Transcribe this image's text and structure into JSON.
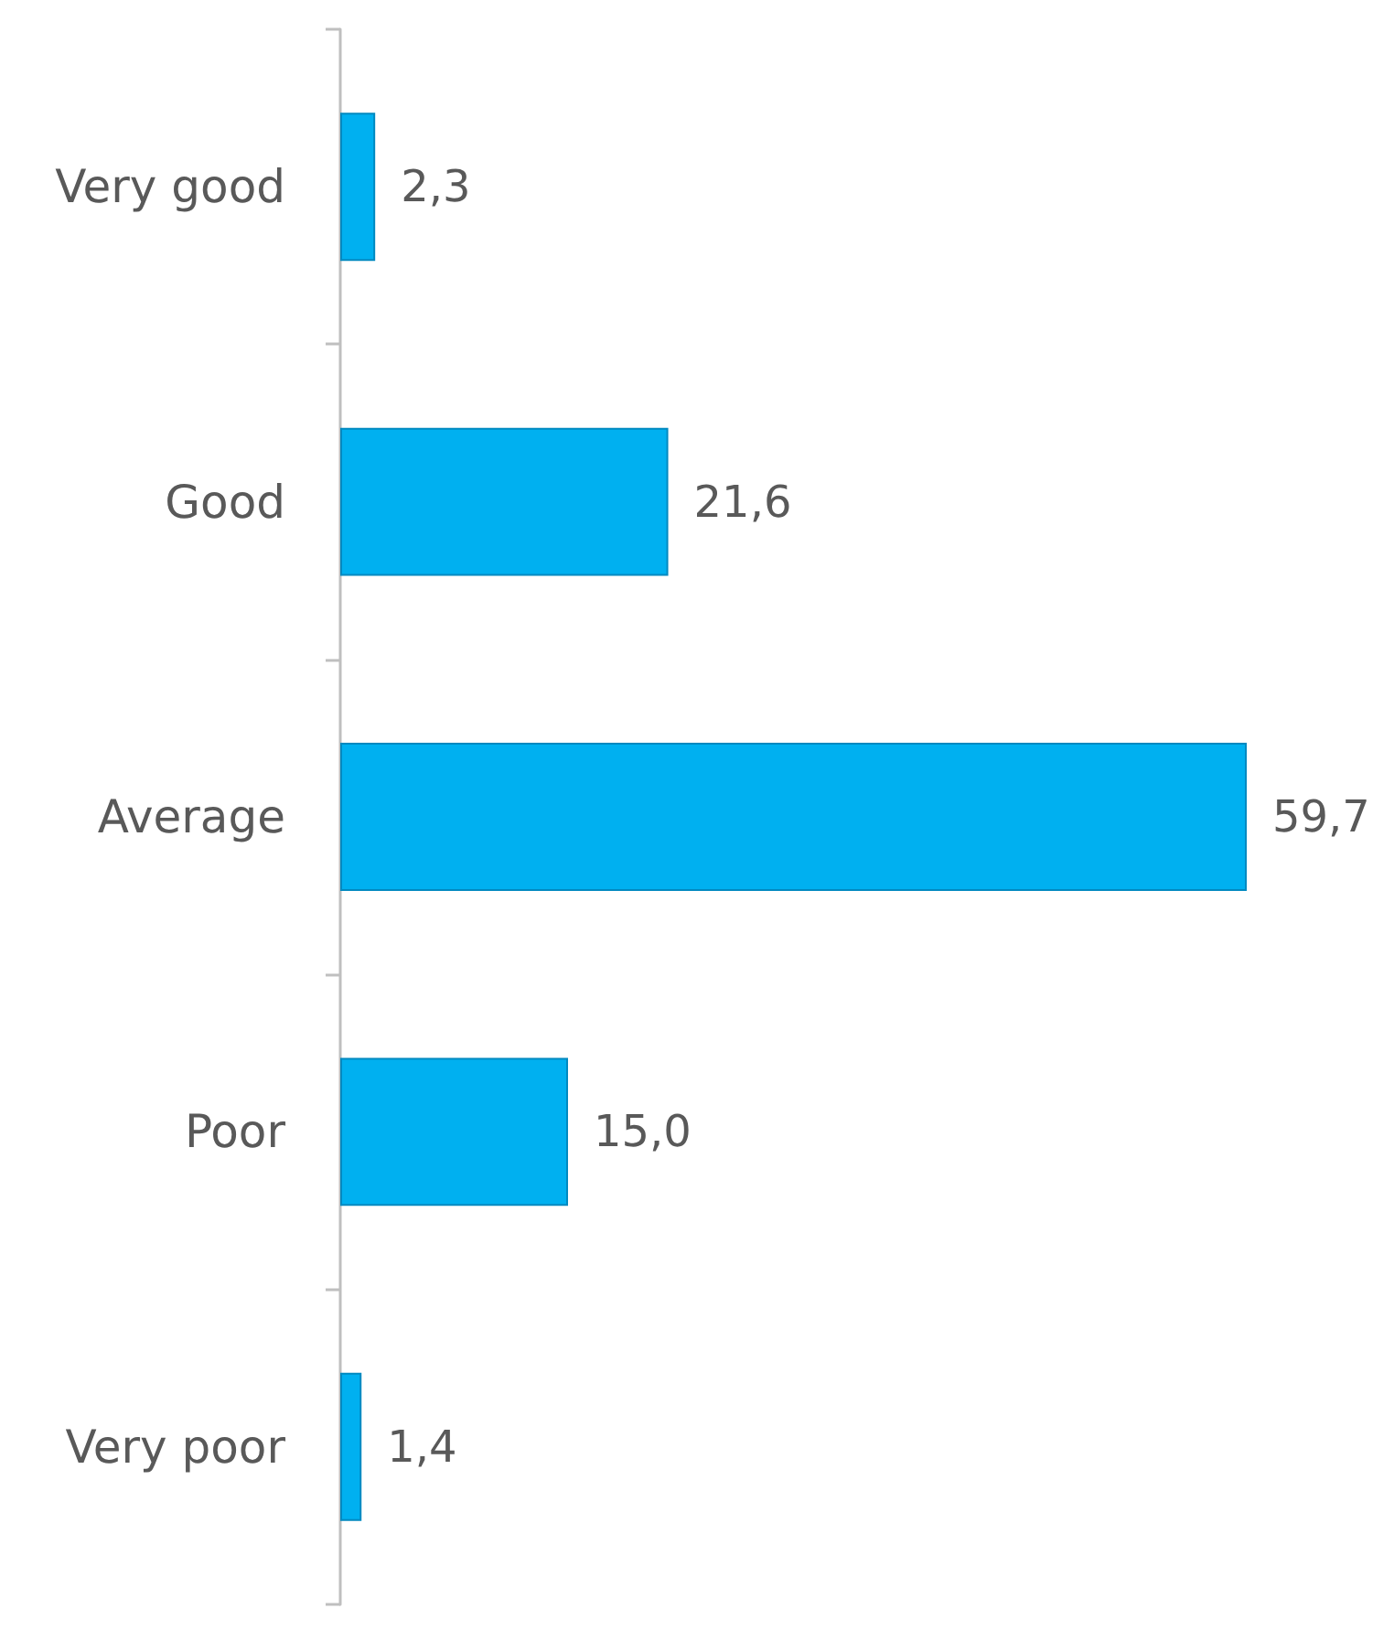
{
  "chart_data": {
    "type": "bar",
    "orientation": "horizontal",
    "categories": [
      "Very good",
      "Good",
      "Average",
      "Poor",
      "Very poor"
    ],
    "values": [
      2.3,
      21.6,
      59.7,
      15.0,
      1.4
    ],
    "value_labels": [
      "2,3",
      "21,6",
      "59,7",
      "15,0",
      "1,4"
    ],
    "color": "#00b0f0"
  }
}
